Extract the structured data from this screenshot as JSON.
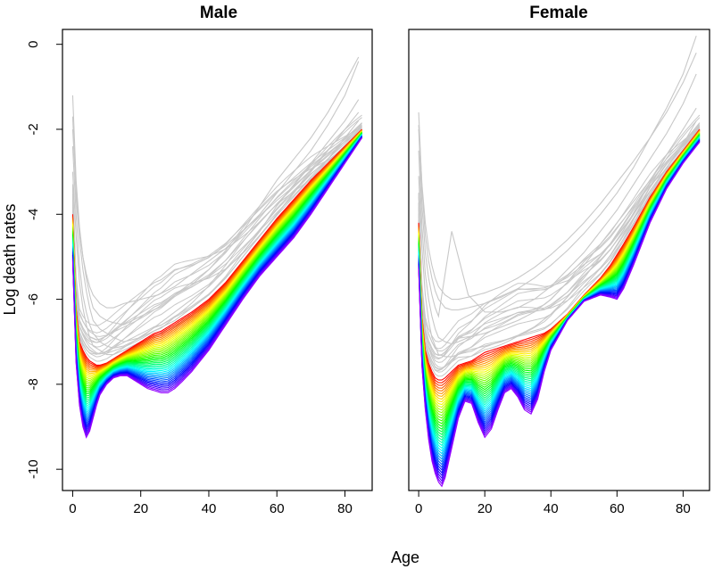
{
  "chart_data": [
    {
      "type": "line",
      "title": "Male",
      "xlabel": "Age",
      "ylabel": "Log death rates",
      "xlim": [
        -3,
        88
      ],
      "ylim": [
        -10.5,
        0.35
      ],
      "xticks": [
        0,
        20,
        40,
        60,
        80
      ],
      "yticks": [
        0,
        -2,
        -4,
        -6,
        -8,
        -10
      ],
      "series_description": "Rainbow-coloured family of log mortality curves by year (red = earliest, violet = latest) with grey outlying years",
      "curves": {
        "ages": [
          0,
          1,
          2,
          3,
          4,
          5,
          6,
          7,
          8,
          10,
          12,
          14,
          16,
          18,
          20,
          22,
          24,
          26,
          28,
          30,
          32,
          35,
          40,
          45,
          50,
          55,
          60,
          65,
          70,
          75,
          80,
          85
        ],
        "earliest": [
          -4.0,
          -6.2,
          -7.0,
          -7.2,
          -7.35,
          -7.45,
          -7.5,
          -7.55,
          -7.55,
          -7.5,
          -7.4,
          -7.3,
          -7.2,
          -7.1,
          -7.0,
          -6.9,
          -6.8,
          -6.75,
          -6.65,
          -6.55,
          -6.45,
          -6.3,
          -6.0,
          -5.6,
          -5.1,
          -4.6,
          -4.1,
          -3.65,
          -3.2,
          -2.8,
          -2.4,
          -2.0
        ],
        "latest": [
          -5.1,
          -7.5,
          -8.5,
          -9.0,
          -9.25,
          -9.1,
          -8.8,
          -8.5,
          -8.25,
          -8.0,
          -7.85,
          -7.8,
          -7.8,
          -7.9,
          -8.0,
          -8.1,
          -8.15,
          -8.2,
          -8.2,
          -8.1,
          -7.95,
          -7.7,
          -7.2,
          -6.6,
          -6.0,
          -5.45,
          -5.0,
          -4.55,
          -4.0,
          -3.4,
          -2.8,
          -2.2
        ],
        "count": 40
      },
      "outliers": [
        {
          "ages": [
            0,
            1,
            2,
            3,
            4,
            5,
            6,
            8,
            10,
            12,
            15,
            20,
            25,
            30,
            35,
            40,
            45,
            50,
            55,
            60,
            65,
            70,
            75,
            80,
            84
          ],
          "values": [
            -1.2,
            -3.2,
            -4.3,
            -5.0,
            -5.5,
            -5.9,
            -6.2,
            -6.4,
            -6.5,
            -6.55,
            -6.6,
            -6.4,
            -6.2,
            -5.9,
            -5.6,
            -5.3,
            -4.9,
            -4.4,
            -3.8,
            -3.2,
            -2.7,
            -2.2,
            -1.6,
            -0.9,
            -0.3
          ]
        },
        {
          "ages": [
            0,
            1,
            2,
            3,
            4,
            5,
            6,
            8,
            10,
            12,
            15,
            20,
            25,
            30,
            35,
            40,
            45,
            50,
            55,
            60,
            65,
            70,
            75,
            80,
            84
          ],
          "values": [
            -1.7,
            -3.6,
            -4.6,
            -5.3,
            -5.8,
            -6.2,
            -6.5,
            -6.7,
            -6.8,
            -6.9,
            -7.0,
            -6.9,
            -6.6,
            -6.3,
            -6.0,
            -5.7,
            -5.3,
            -4.9,
            -4.4,
            -3.8,
            -3.3,
            -2.8,
            -2.3,
            -1.8,
            -1.3
          ]
        },
        {
          "ages": [
            0,
            1,
            2,
            3,
            4,
            5,
            6,
            8,
            10,
            12,
            15,
            20,
            25,
            30,
            35,
            40,
            45,
            50,
            55,
            60,
            65,
            70,
            75,
            80,
            84
          ],
          "values": [
            -2.4,
            -4.0,
            -5.2,
            -5.9,
            -6.3,
            -6.6,
            -6.8,
            -7.0,
            -7.1,
            -7.15,
            -7.1,
            -6.9,
            -6.7,
            -6.5,
            -6.2,
            -5.9,
            -5.5,
            -5.0,
            -4.5,
            -4.0,
            -3.5,
            -3.0,
            -2.5,
            -2.0,
            -1.6
          ]
        },
        {
          "ages": [
            0,
            1,
            2,
            3,
            4,
            5,
            6,
            8,
            10,
            12,
            15,
            20,
            25,
            30,
            35,
            40,
            45,
            50,
            55,
            60,
            65,
            70,
            75,
            80,
            84
          ],
          "values": [
            -3.0,
            -4.5,
            -5.6,
            -6.2,
            -6.6,
            -6.9,
            -7.1,
            -7.2,
            -7.3,
            -7.3,
            -7.2,
            -7.0,
            -6.85,
            -6.65,
            -6.4,
            -6.1,
            -5.7,
            -5.2,
            -4.7,
            -4.2,
            -3.7,
            -3.2,
            -2.7,
            -2.2,
            -1.8
          ]
        },
        {
          "ages": [
            0,
            1,
            2,
            3,
            4,
            5,
            6,
            8,
            10,
            12,
            15,
            20,
            25,
            30,
            35,
            40,
            45,
            50,
            55,
            60,
            65,
            70,
            75,
            80,
            84
          ],
          "values": [
            -2.0,
            -3.4,
            -4.4,
            -5.0,
            -5.4,
            -5.7,
            -5.9,
            -6.1,
            -6.2,
            -6.2,
            -6.1,
            -6.0,
            -5.9,
            -5.7,
            -5.4,
            -5.1,
            -4.8,
            -4.4,
            -4.0,
            -3.5,
            -3.0,
            -2.5,
            -1.9,
            -1.2,
            -0.4
          ]
        }
      ]
    },
    {
      "type": "line",
      "title": "Female",
      "xlabel": "Age",
      "ylabel": "Log death rates",
      "xlim": [
        -3,
        88
      ],
      "ylim": [
        -10.5,
        0.35
      ],
      "xticks": [
        0,
        20,
        40,
        60,
        80
      ],
      "yticks": [
        0,
        -2,
        -4,
        -6,
        -8,
        -10
      ],
      "series_description": "Rainbow-coloured family of log mortality curves by year (red = earliest, violet = latest) with grey outlying years",
      "curves": {
        "ages": [
          0,
          1,
          2,
          3,
          4,
          5,
          6,
          7,
          8,
          10,
          12,
          14,
          16,
          18,
          20,
          22,
          24,
          26,
          28,
          30,
          32,
          34,
          36,
          38,
          40,
          45,
          50,
          55,
          58,
          60,
          62,
          65,
          70,
          75,
          80,
          85
        ],
        "earliest": [
          -4.2,
          -6.4,
          -7.2,
          -7.5,
          -7.7,
          -7.85,
          -7.9,
          -7.9,
          -7.85,
          -7.7,
          -7.55,
          -7.5,
          -7.45,
          -7.35,
          -7.25,
          -7.2,
          -7.15,
          -7.1,
          -7.05,
          -7.0,
          -6.95,
          -6.9,
          -6.85,
          -6.8,
          -6.7,
          -6.35,
          -5.9,
          -5.5,
          -5.2,
          -4.95,
          -4.7,
          -4.3,
          -3.6,
          -3.0,
          -2.5,
          -2.0
        ],
        "latest": [
          -5.3,
          -7.6,
          -8.6,
          -9.3,
          -9.8,
          -10.1,
          -10.3,
          -10.4,
          -10.2,
          -9.5,
          -8.8,
          -8.4,
          -8.45,
          -8.9,
          -9.25,
          -9.05,
          -8.6,
          -8.2,
          -8.1,
          -8.3,
          -8.6,
          -8.7,
          -8.35,
          -7.7,
          -7.2,
          -6.5,
          -6.05,
          -5.9,
          -5.95,
          -6.0,
          -5.75,
          -5.2,
          -4.2,
          -3.4,
          -2.8,
          -2.3
        ],
        "count": 40
      },
      "outliers": [
        {
          "ages": [
            0,
            1,
            2,
            3,
            4,
            5,
            6,
            8,
            10,
            12,
            15,
            20,
            25,
            30,
            35,
            40,
            45,
            50,
            55,
            60,
            65,
            70,
            75,
            80,
            84
          ],
          "values": [
            -1.6,
            -3.4,
            -4.5,
            -5.1,
            -5.5,
            -5.8,
            -6.0,
            -6.2,
            -6.25,
            -6.25,
            -6.2,
            -6.1,
            -5.95,
            -5.75,
            -5.5,
            -5.2,
            -4.85,
            -4.45,
            -4.0,
            -3.5,
            -2.9,
            -2.2,
            -1.5,
            -0.7,
            0.2
          ]
        },
        {
          "ages": [
            0,
            1,
            2,
            3,
            4,
            5,
            6,
            8,
            10,
            12,
            15,
            20,
            25,
            30,
            35,
            40,
            45,
            50,
            55,
            60,
            65,
            70,
            75,
            80,
            84
          ],
          "values": [
            -2.0,
            -3.8,
            -4.9,
            -5.5,
            -5.9,
            -6.2,
            -6.4,
            -5.4,
            -4.4,
            -5.0,
            -5.9,
            -6.3,
            -6.3,
            -6.2,
            -6.0,
            -5.7,
            -5.3,
            -4.9,
            -4.4,
            -3.9,
            -3.3,
            -2.7,
            -2.1,
            -1.4,
            -0.7
          ]
        },
        {
          "ages": [
            0,
            1,
            2,
            3,
            4,
            5,
            6,
            8,
            10,
            12,
            15,
            20,
            25,
            30,
            35,
            40,
            45,
            50,
            55,
            60,
            65,
            70,
            75,
            80,
            84
          ],
          "values": [
            -2.5,
            -4.3,
            -5.4,
            -6.0,
            -6.4,
            -6.7,
            -6.9,
            -7.0,
            -7.05,
            -7.0,
            -6.9,
            -6.8,
            -6.65,
            -6.5,
            -6.3,
            -6.0,
            -5.6,
            -5.2,
            -4.7,
            -4.2,
            -3.7,
            -3.2,
            -2.6,
            -2.0,
            -1.5
          ]
        },
        {
          "ages": [
            0,
            1,
            2,
            3,
            4,
            5,
            6,
            8,
            10,
            12,
            15,
            20,
            25,
            30,
            35,
            40,
            45,
            50,
            55,
            60,
            65,
            70,
            75,
            80,
            84
          ],
          "values": [
            -3.1,
            -4.8,
            -5.9,
            -6.5,
            -6.9,
            -7.1,
            -7.3,
            -7.35,
            -7.35,
            -7.3,
            -7.2,
            -7.1,
            -7.0,
            -6.85,
            -6.65,
            -6.35,
            -5.95,
            -5.5,
            -5.0,
            -4.5,
            -4.0,
            -3.45,
            -2.9,
            -2.35,
            -1.8
          ]
        },
        {
          "ages": [
            0,
            1,
            2,
            3,
            4,
            5,
            6,
            8,
            10,
            12,
            15,
            20,
            25,
            30,
            35,
            40,
            45,
            50,
            55,
            60,
            65,
            70,
            75,
            80,
            84
          ],
          "values": [
            -1.9,
            -3.3,
            -4.2,
            -4.8,
            -5.2,
            -5.5,
            -5.7,
            -5.9,
            -6.0,
            -6.0,
            -5.95,
            -5.85,
            -5.7,
            -5.5,
            -5.25,
            -4.95,
            -4.6,
            -4.2,
            -3.75,
            -3.25,
            -2.75,
            -2.2,
            -1.6,
            -0.9,
            -0.2
          ]
        }
      ]
    }
  ],
  "colors": {
    "outlier": "#c8c8c8",
    "frame": "#000000"
  }
}
